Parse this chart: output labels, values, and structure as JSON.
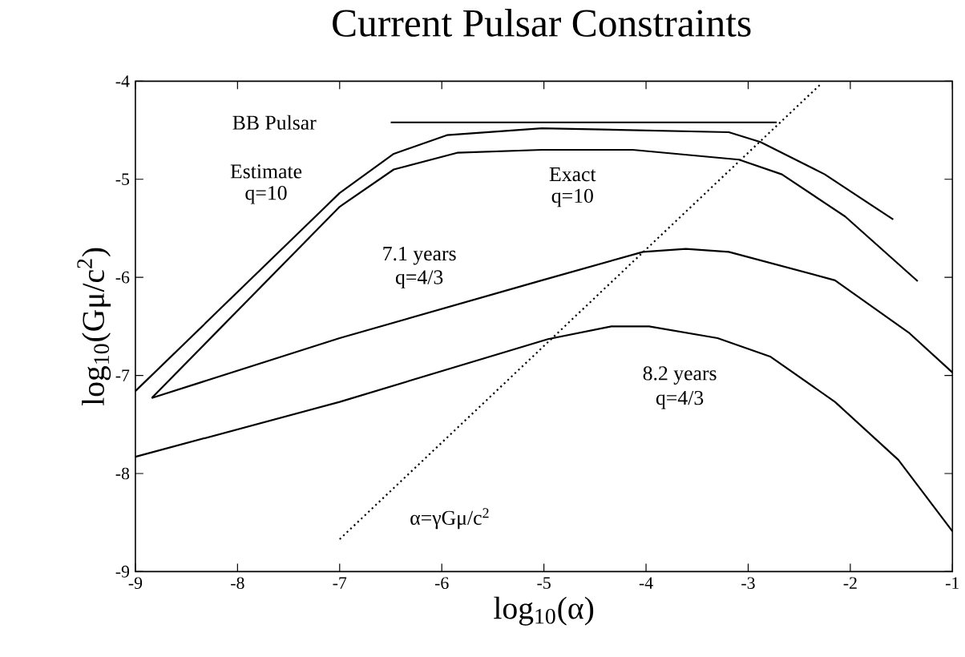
{
  "chart_data": {
    "type": "line",
    "title": "Current Pulsar Constraints",
    "xlabel": "log$_{10}$(α)",
    "ylabel": "log$_{10}$(Gμ/c$^{2}$)",
    "xlim": [
      -9,
      -1
    ],
    "ylim": [
      -9,
      -4
    ],
    "xticks": [
      -9,
      -8,
      -7,
      -6,
      -5,
      -4,
      -3,
      -2,
      -1
    ],
    "yticks": [
      -9,
      -8,
      -7,
      -6,
      -5,
      -4
    ],
    "series": [
      {
        "color": "#000000",
        "x": [
          -9,
          -7,
          -6.47,
          -5.95,
          -5.02,
          -3.19,
          -2.88,
          -2.25,
          -1.58
        ],
        "values": [
          -7.16,
          -5.14,
          -4.74,
          -4.55,
          -4.48,
          -4.52,
          -4.62,
          -4.95,
          -5.41
        ]
      },
      {
        "color": "#000000",
        "x": [
          -8.84,
          -7,
          -6.47,
          -5.85,
          -5.02,
          -4.13,
          -3.09,
          -2.67,
          -2.05,
          -1.34
        ],
        "values": [
          -7.23,
          -5.28,
          -4.9,
          -4.73,
          -4.7,
          -4.7,
          -4.8,
          -4.95,
          -5.38,
          -6.04
        ]
      },
      {
        "color": "#000000",
        "x": [
          -8.84,
          -7,
          -5.02,
          -4.03,
          -3.61,
          -3.19,
          -2.15,
          -1.42,
          -1
        ],
        "values": [
          -7.23,
          -6.62,
          -6.03,
          -5.74,
          -5.71,
          -5.74,
          -6.03,
          -6.57,
          -6.97
        ]
      },
      {
        "color": "#000000",
        "x": [
          -9,
          -7,
          -4.96,
          -4.34,
          -3.97,
          -3.3,
          -2.78,
          -2.15,
          -1.53,
          -1
        ],
        "values": [
          -7.83,
          -7.27,
          -6.63,
          -6.5,
          -6.5,
          -6.62,
          -6.81,
          -7.27,
          -7.86,
          -8.59
        ]
      },
      {
        "color": "#000000",
        "x": [
          -6.5,
          -2.72
        ],
        "values": [
          -4.42,
          -4.42
        ]
      },
      {
        "color": "#000000",
        "line_style": "dotted",
        "x": [
          -7,
          -2.3
        ],
        "values": [
          -8.67,
          -4.04
        ]
      }
    ],
    "annotations": [
      "BB Pulsar",
      "Estimate",
      "q=10",
      "Exact",
      "q=10",
      "7.1 years",
      "q=4/3",
      "8.2 years",
      "q=4/3",
      "α=γGμ/c$^{2}$"
    ]
  }
}
